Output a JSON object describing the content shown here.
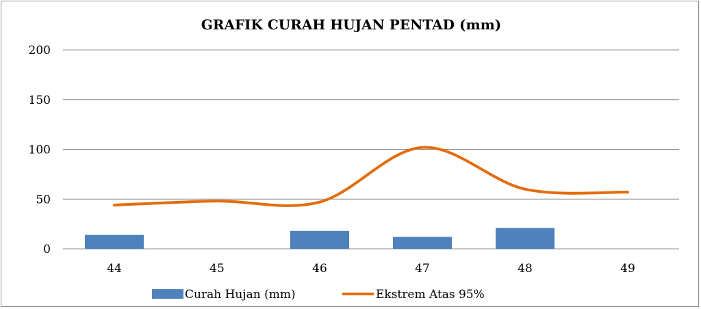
{
  "chart_data": {
    "type": "bar",
    "title": "GRAFIK CURAH HUJAN PENTAD  (mm)",
    "categories": [
      "44",
      "45",
      "46",
      "47",
      "48",
      "49"
    ],
    "ylim": [
      0,
      200
    ],
    "yticks": [
      "0",
      "50",
      "100",
      "150",
      "200"
    ],
    "ytick_values": [
      0,
      50,
      100,
      150,
      200
    ],
    "grid": "horizontal",
    "legend_position": "bottom",
    "series": [
      {
        "name": "Curah Hujan (mm)",
        "type": "bar",
        "color": "#4f81bd",
        "values": [
          14,
          0,
          18,
          12,
          21,
          0
        ]
      },
      {
        "name": "Ekstrem Atas  95%",
        "type": "line",
        "smooth": true,
        "color": "#e46c0a",
        "values": [
          44,
          48,
          47,
          102,
          60,
          57
        ]
      }
    ]
  }
}
